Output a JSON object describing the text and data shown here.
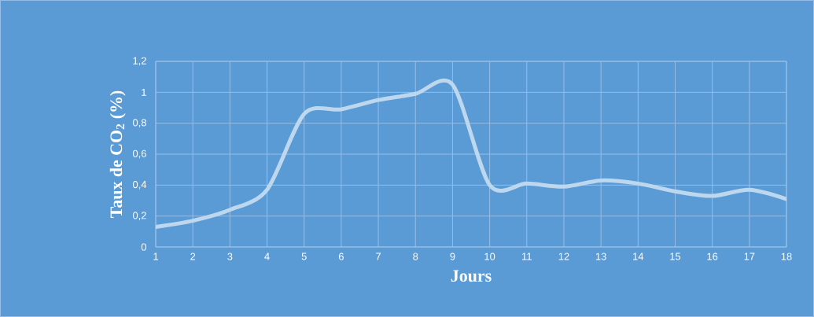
{
  "chart_data": {
    "type": "line",
    "xlabel": "Jours",
    "ylabel": "Taux de CO$_{2}$ (%)",
    "x": [
      1,
      2,
      3,
      4,
      5,
      6,
      7,
      8,
      9,
      10,
      11,
      12,
      13,
      14,
      15,
      16,
      17,
      18
    ],
    "series": [
      {
        "color": "#bdd7ee",
        "values": [
          0.13,
          0.17,
          0.24,
          0.37,
          0.86,
          0.89,
          0.95,
          0.99,
          1.05,
          0.4,
          0.41,
          0.39,
          0.43,
          0.41,
          0.36,
          0.33,
          0.37,
          0.31
        ]
      }
    ],
    "xlim": [
      1,
      18
    ],
    "xticks": [
      1,
      2,
      3,
      4,
      5,
      6,
      7,
      8,
      9,
      10,
      11,
      12,
      13,
      14,
      15,
      16,
      17,
      18
    ],
    "ylim": [
      0,
      1.2
    ],
    "yticks": [
      0,
      {
        "value": 0.2,
        "label": "0,2"
      },
      {
        "value": 0.4,
        "label": "0,4"
      },
      {
        "value": 0.6,
        "label": "0,6"
      },
      {
        "value": 0.8,
        "label": "0,8"
      },
      1,
      {
        "value": 1.2,
        "label": "1,2"
      }
    ],
    "grid": true,
    "legend": false,
    "marker": "none",
    "line_style": "solid"
  }
}
